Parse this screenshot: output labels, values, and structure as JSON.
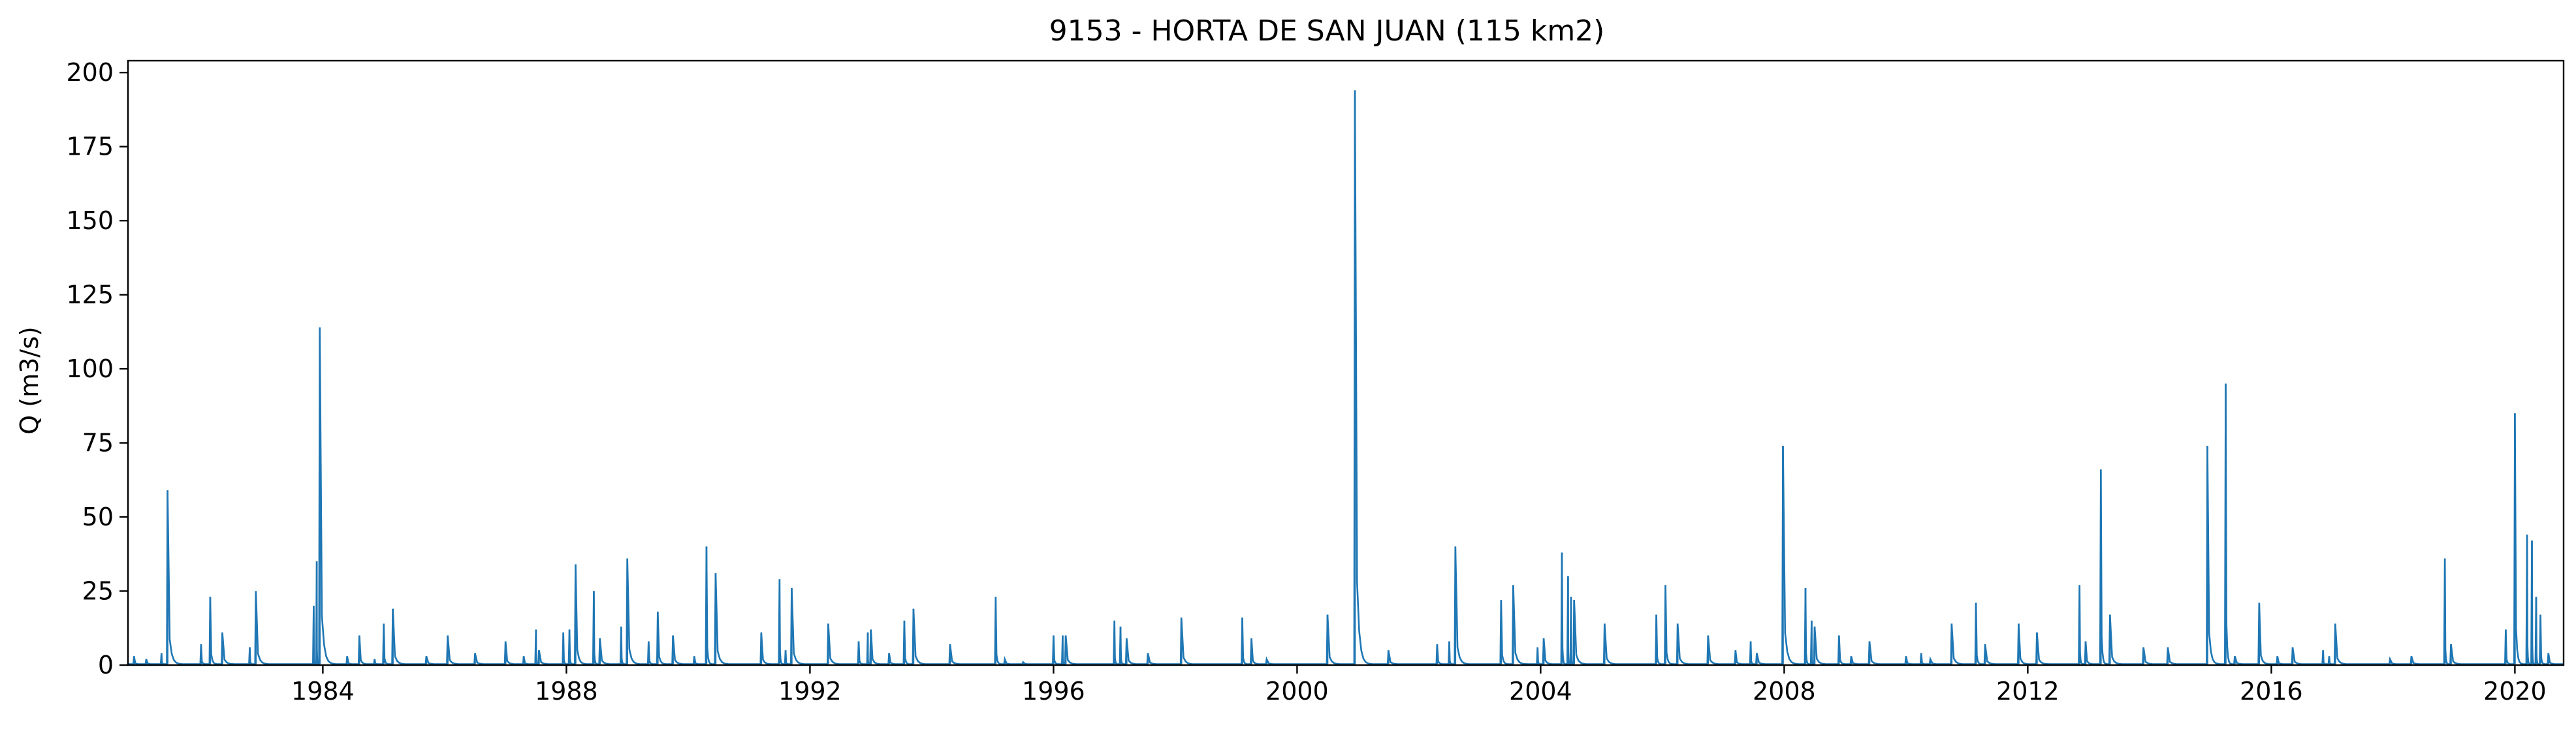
{
  "chart_data": {
    "type": "line",
    "title": "9153 - HORTA DE SAN JUAN (115 km2)",
    "xlabel": "",
    "ylabel": "Q (m3/s)",
    "xlim": [
      1980.8,
      2020.8
    ],
    "ylim": [
      0,
      204
    ],
    "x_ticks": [
      1984,
      1988,
      1992,
      1996,
      2000,
      2004,
      2008,
      2012,
      2016,
      2020
    ],
    "y_ticks": [
      0,
      25,
      50,
      75,
      100,
      125,
      150,
      175,
      200
    ],
    "grid": false,
    "legend": "none",
    "series": [
      {
        "color": "#1f77b4",
        "baseflow": 0.3,
        "peaks": [
          [
            1980.9,
            3
          ],
          [
            1981.1,
            2
          ],
          [
            1981.35,
            4
          ],
          [
            1981.45,
            59
          ],
          [
            1982.0,
            7
          ],
          [
            1982.15,
            23
          ],
          [
            1982.35,
            11
          ],
          [
            1982.8,
            6
          ],
          [
            1982.9,
            25
          ],
          [
            1983.85,
            20
          ],
          [
            1983.9,
            35
          ],
          [
            1983.95,
            114
          ],
          [
            1984.4,
            3
          ],
          [
            1984.6,
            10
          ],
          [
            1984.85,
            2
          ],
          [
            1985.0,
            14
          ],
          [
            1985.15,
            19
          ],
          [
            1985.7,
            3
          ],
          [
            1986.05,
            10
          ],
          [
            1986.5,
            4
          ],
          [
            1987.0,
            8
          ],
          [
            1987.3,
            3
          ],
          [
            1987.5,
            12
          ],
          [
            1987.55,
            5
          ],
          [
            1987.95,
            11
          ],
          [
            1988.05,
            12
          ],
          [
            1988.15,
            34
          ],
          [
            1988.45,
            25
          ],
          [
            1988.55,
            9
          ],
          [
            1988.9,
            13
          ],
          [
            1989.0,
            36
          ],
          [
            1989.35,
            8
          ],
          [
            1989.5,
            18
          ],
          [
            1989.75,
            10
          ],
          [
            1990.1,
            3
          ],
          [
            1990.3,
            40
          ],
          [
            1990.45,
            31
          ],
          [
            1991.2,
            11
          ],
          [
            1991.5,
            29
          ],
          [
            1991.6,
            5
          ],
          [
            1991.7,
            26
          ],
          [
            1992.3,
            14
          ],
          [
            1992.8,
            8
          ],
          [
            1992.95,
            11
          ],
          [
            1993.0,
            12
          ],
          [
            1993.3,
            4
          ],
          [
            1993.55,
            15
          ],
          [
            1993.7,
            19
          ],
          [
            1994.3,
            7
          ],
          [
            1995.05,
            23
          ],
          [
            1995.2,
            2
          ],
          [
            1995.5,
            1
          ],
          [
            1996.0,
            10
          ],
          [
            1996.15,
            10
          ],
          [
            1996.2,
            10
          ],
          [
            1997.0,
            15
          ],
          [
            1997.1,
            13
          ],
          [
            1997.2,
            9
          ],
          [
            1997.55,
            4
          ],
          [
            1998.1,
            16
          ],
          [
            1999.1,
            16
          ],
          [
            1999.25,
            9
          ],
          [
            1999.5,
            2
          ],
          [
            2000.5,
            17
          ],
          [
            2000.95,
            194
          ],
          [
            2001.5,
            5
          ],
          [
            2002.3,
            7
          ],
          [
            2002.5,
            8
          ],
          [
            2002.6,
            40
          ],
          [
            2003.35,
            22
          ],
          [
            2003.55,
            27
          ],
          [
            2003.95,
            6
          ],
          [
            2004.05,
            9
          ],
          [
            2004.35,
            38
          ],
          [
            2004.45,
            30
          ],
          [
            2004.5,
            23
          ],
          [
            2004.55,
            22
          ],
          [
            2005.05,
            14
          ],
          [
            2005.9,
            17
          ],
          [
            2006.05,
            27
          ],
          [
            2006.25,
            14
          ],
          [
            2006.75,
            10
          ],
          [
            2007.2,
            5
          ],
          [
            2007.45,
            8
          ],
          [
            2007.55,
            4
          ],
          [
            2007.98,
            74
          ],
          [
            2008.35,
            26
          ],
          [
            2008.45,
            15
          ],
          [
            2008.5,
            13
          ],
          [
            2008.9,
            10
          ],
          [
            2009.1,
            3
          ],
          [
            2009.4,
            8
          ],
          [
            2010.0,
            3
          ],
          [
            2010.25,
            4
          ],
          [
            2010.4,
            2
          ],
          [
            2010.75,
            14
          ],
          [
            2011.15,
            21
          ],
          [
            2011.3,
            7
          ],
          [
            2011.85,
            14
          ],
          [
            2012.15,
            11
          ],
          [
            2012.85,
            27
          ],
          [
            2012.95,
            8
          ],
          [
            2013.2,
            66
          ],
          [
            2013.35,
            17
          ],
          [
            2013.9,
            6
          ],
          [
            2014.3,
            6
          ],
          [
            2014.95,
            74
          ],
          [
            2015.25,
            95
          ],
          [
            2015.4,
            3
          ],
          [
            2015.8,
            21
          ],
          [
            2016.1,
            3
          ],
          [
            2016.35,
            6
          ],
          [
            2016.85,
            5
          ],
          [
            2016.95,
            3
          ],
          [
            2017.05,
            14
          ],
          [
            2017.95,
            2
          ],
          [
            2018.3,
            3
          ],
          [
            2018.85,
            36
          ],
          [
            2018.95,
            7
          ],
          [
            2019.85,
            12
          ],
          [
            2020.0,
            85
          ],
          [
            2020.2,
            44
          ],
          [
            2020.28,
            42
          ],
          [
            2020.35,
            23
          ],
          [
            2020.42,
            17
          ],
          [
            2020.55,
            4
          ]
        ]
      }
    ]
  }
}
